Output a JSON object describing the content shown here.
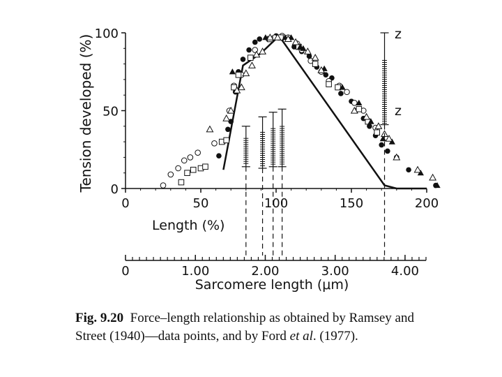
{
  "chart_data": {
    "type": "scatter",
    "ylabel": "Tension developed (%)",
    "xlabel": "Length (%)",
    "x2label": "Sarcomere length (μm)",
    "x_ticks": [
      "0",
      "50",
      "100",
      "150",
      "200"
    ],
    "x_tick_values": [
      0,
      50,
      100,
      150,
      200
    ],
    "y_ticks": [
      "0",
      "50",
      "100"
    ],
    "y_tick_values": [
      0,
      50,
      100
    ],
    "x2_ticks": [
      "0",
      "1.00",
      "2.00",
      "3.00",
      "4.00"
    ],
    "x2_tick_values": [
      0,
      1,
      2,
      3,
      4
    ],
    "xlim": [
      0,
      200
    ],
    "ylim": [
      0,
      100
    ],
    "x2lim": [
      0,
      4.3
    ],
    "z_labels": [
      "z",
      "z"
    ],
    "series": [
      {
        "marker": "filled-circle",
        "points": [
          [
            62,
            21
          ],
          [
            65,
            30
          ],
          [
            68,
            38
          ],
          [
            70,
            43
          ],
          [
            73,
            62
          ],
          [
            75,
            75
          ],
          [
            78,
            83
          ],
          [
            82,
            89
          ],
          [
            86,
            94
          ],
          [
            89,
            96
          ],
          [
            100,
            98
          ],
          [
            108,
            96
          ],
          [
            112,
            91
          ],
          [
            117,
            88
          ],
          [
            122,
            85
          ],
          [
            127,
            78
          ],
          [
            133,
            73
          ],
          [
            137,
            71
          ],
          [
            143,
            61
          ],
          [
            150,
            56
          ],
          [
            153,
            50
          ],
          [
            158,
            45
          ],
          [
            162,
            40
          ],
          [
            166,
            34
          ],
          [
            170,
            28
          ],
          [
            174,
            24
          ],
          [
            180,
            20
          ],
          [
            188,
            12
          ],
          [
            206,
            2
          ]
        ]
      },
      {
        "marker": "open-circle",
        "points": [
          [
            25,
            2
          ],
          [
            30,
            9
          ],
          [
            35,
            13
          ],
          [
            39,
            18
          ],
          [
            43,
            20
          ],
          [
            48,
            23
          ],
          [
            59,
            29
          ],
          [
            69,
            50
          ],
          [
            72,
            66
          ],
          [
            77,
            73
          ],
          [
            83,
            84
          ],
          [
            86,
            89
          ],
          [
            95,
            96
          ],
          [
            99,
            97
          ],
          [
            104,
            98
          ],
          [
            108,
            97
          ],
          [
            114,
            93
          ],
          [
            117,
            89
          ],
          [
            123,
            82
          ],
          [
            130,
            75
          ],
          [
            135,
            69
          ],
          [
            142,
            66
          ],
          [
            147,
            62
          ],
          [
            152,
            55
          ],
          [
            158,
            50
          ],
          [
            166,
            39
          ]
        ]
      },
      {
        "marker": "open-square",
        "points": [
          [
            37,
            4
          ],
          [
            41,
            10
          ],
          [
            45,
            12
          ],
          [
            50,
            13
          ],
          [
            53,
            14
          ],
          [
            64,
            30
          ],
          [
            67,
            31
          ],
          [
            72,
            65
          ],
          [
            75,
            73
          ],
          [
            83,
            84
          ],
          [
            96,
            96
          ],
          [
            103,
            97
          ],
          [
            115,
            91
          ],
          [
            126,
            80
          ],
          [
            135,
            67
          ],
          [
            141,
            65
          ],
          [
            155,
            51
          ],
          [
            161,
            43
          ],
          [
            167,
            36
          ]
        ]
      },
      {
        "marker": "filled-triangle",
        "points": [
          [
            71,
            75
          ],
          [
            93,
            97
          ],
          [
            106,
            97
          ],
          [
            110,
            97
          ],
          [
            116,
            91
          ],
          [
            118,
            90
          ],
          [
            132,
            77
          ],
          [
            144,
            65
          ],
          [
            155,
            55
          ],
          [
            163,
            43
          ],
          [
            171,
            32
          ],
          [
            177,
            30
          ],
          [
            196,
            10
          ],
          [
            207,
            2
          ]
        ]
      },
      {
        "marker": "open-triangle",
        "points": [
          [
            56,
            38
          ],
          [
            67,
            45
          ],
          [
            70,
            50
          ],
          [
            74,
            63
          ],
          [
            77,
            65
          ],
          [
            80,
            74
          ],
          [
            84,
            79
          ],
          [
            87,
            86
          ],
          [
            91,
            88
          ],
          [
            96,
            97
          ],
          [
            101,
            97
          ],
          [
            108,
            96
          ],
          [
            113,
            94
          ],
          [
            121,
            88
          ],
          [
            126,
            84
          ],
          [
            130,
            76
          ],
          [
            152,
            50
          ],
          [
            160,
            46
          ],
          [
            168,
            40
          ],
          [
            172,
            35
          ],
          [
            175,
            32
          ],
          [
            180,
            20
          ],
          [
            194,
            12
          ],
          [
            204,
            7
          ]
        ]
      }
    ],
    "line": {
      "x": [
        65,
        78,
        90,
        102,
        172,
        180,
        200
      ],
      "y": [
        12,
        79,
        87,
        98,
        2,
        0,
        0
      ]
    },
    "ford_marks": [
      {
        "x": 80,
        "top": 40,
        "bottom": 14
      },
      {
        "x": 91,
        "top": 46,
        "bottom": 13
      },
      {
        "x": 98,
        "top": 49,
        "bottom": 14
      },
      {
        "x": 104,
        "top": 51,
        "bottom": 14
      },
      {
        "x": 172,
        "top": 100,
        "bottom": 41
      }
    ]
  },
  "caption": {
    "fig": "Fig. 9.20",
    "text": "Force–length relationship as obtained by Ramsey and Street (1940)—data points, and by Ford ",
    "etal": "et al",
    "rest": ". (1977)."
  }
}
